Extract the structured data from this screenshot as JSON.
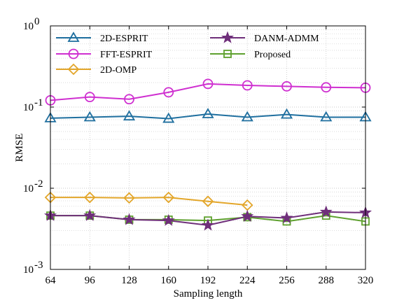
{
  "chart_data": {
    "type": "line",
    "title": "",
    "xlabel": "Sampling length",
    "ylabel": "RMSE",
    "x": [
      64,
      96,
      128,
      160,
      192,
      224,
      256,
      288,
      320
    ],
    "x_ticks": [
      "64",
      "96",
      "128",
      "160",
      "192",
      "224",
      "256",
      "288",
      "320"
    ],
    "xlim": [
      64,
      320
    ],
    "y_scale": "log",
    "ylim": [
      0.001,
      1
    ],
    "y_ticks": [
      {
        "value": 1,
        "base": "10",
        "exp": "0"
      },
      {
        "value": 0.1,
        "base": "10",
        "exp": "-1"
      },
      {
        "value": 0.01,
        "base": "10",
        "exp": "-2"
      },
      {
        "value": 0.001,
        "base": "10",
        "exp": "-3"
      }
    ],
    "grid": true,
    "legend_placement": "top",
    "series": [
      {
        "name": "2D-ESPRIT",
        "color": "#1f6f9f",
        "marker": "triangle",
        "values": [
          0.073,
          0.075,
          0.077,
          0.072,
          0.082,
          0.075,
          0.081,
          0.075,
          0.075
        ]
      },
      {
        "name": "FFT-ESPRIT",
        "color": "#cf2fd0",
        "marker": "circle",
        "values": [
          0.121,
          0.133,
          0.125,
          0.152,
          0.193,
          0.185,
          0.18,
          0.175,
          0.173
        ]
      },
      {
        "name": "2D-OMP",
        "color": "#e3a62a",
        "marker": "diamond",
        "values": [
          0.0077,
          0.0077,
          0.0076,
          0.0077,
          0.0069,
          0.0062,
          null,
          null,
          null
        ]
      },
      {
        "name": "DANM-ADMM",
        "color": "#6f2f7a",
        "marker": "star",
        "values": [
          0.0046,
          0.0046,
          0.0041,
          0.004,
          0.0035,
          0.0045,
          0.0043,
          0.0051,
          0.005
        ]
      },
      {
        "name": "Proposed",
        "color": "#5ea02e",
        "marker": "square",
        "values": [
          0.0046,
          0.0046,
          0.0041,
          0.0041,
          0.004,
          0.0044,
          0.0039,
          0.0046,
          0.0039
        ]
      }
    ]
  }
}
